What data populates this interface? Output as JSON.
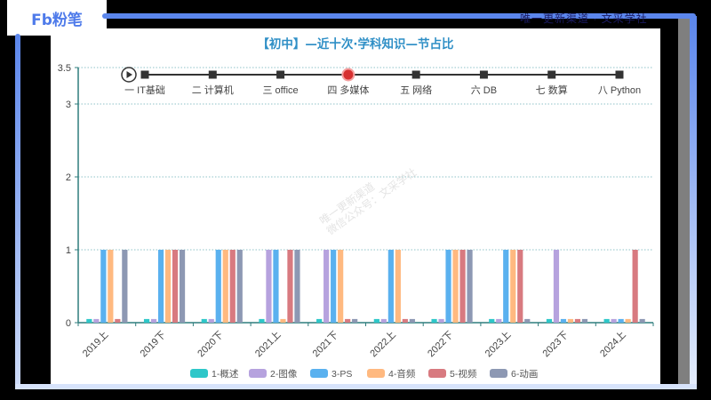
{
  "brand": {
    "logo_text": "Fb粉笔"
  },
  "top_watermark": "唯一更新渠道 · 文采学社",
  "chart_data": {
    "type": "bar",
    "title": "【初中】—近十次·学科知识—节占比",
    "xlabel": "",
    "ylabel": "",
    "ylim": [
      0,
      3.5
    ],
    "yticks": [
      0,
      1,
      2,
      3,
      3.5
    ],
    "grid": true,
    "legend_position": "bottom",
    "categories": [
      "2019上",
      "2019下",
      "2020下",
      "2021上",
      "2021下",
      "2022上",
      "2022下",
      "2023上",
      "2023下",
      "2024上"
    ],
    "series": [
      {
        "name": "1-概述",
        "color": "#2ec7c9",
        "values": [
          0,
          0,
          0,
          0,
          0,
          0,
          0,
          0,
          0,
          0
        ]
      },
      {
        "name": "2-图像",
        "color": "#b6a2de",
        "values": [
          0,
          0,
          0,
          1,
          1,
          0,
          0,
          0,
          1,
          0
        ]
      },
      {
        "name": "3-PS",
        "color": "#5ab1ef",
        "values": [
          1,
          1,
          1,
          1,
          1,
          1,
          1,
          1,
          0,
          0
        ]
      },
      {
        "name": "4-音频",
        "color": "#ffb980",
        "values": [
          1,
          1,
          1,
          0,
          1,
          1,
          1,
          1,
          0,
          0
        ]
      },
      {
        "name": "5-视频",
        "color": "#d87a80",
        "values": [
          0,
          1,
          1,
          1,
          0,
          0,
          1,
          1,
          0,
          1
        ]
      },
      {
        "name": "6-动画",
        "color": "#8d98b3",
        "values": [
          1,
          1,
          1,
          1,
          0,
          0,
          1,
          0,
          0,
          0
        ]
      }
    ],
    "zero_stub_value": 0.05
  },
  "timeline": {
    "active_index": 3,
    "items": [
      "一 IT基础",
      "二 计算机",
      "三 office",
      "四 多媒体",
      "五 网络",
      "六 DB",
      "七 数算",
      "八 Python"
    ]
  },
  "watermark": {
    "line1": "唯一更新渠道",
    "line2": "微信公众号：文采学社"
  }
}
